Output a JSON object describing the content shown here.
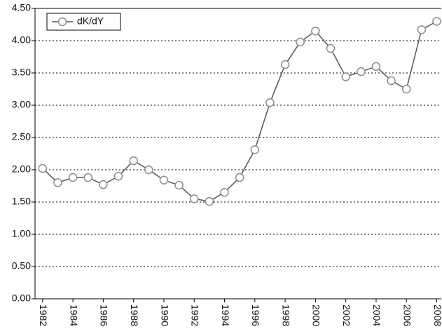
{
  "chart_data": {
    "type": "line",
    "x": [
      1982,
      1983,
      1984,
      1985,
      1986,
      1987,
      1988,
      1989,
      1990,
      1991,
      1992,
      1993,
      1994,
      1995,
      1996,
      1997,
      1998,
      1999,
      2000,
      2001,
      2002,
      2003,
      2004,
      2005,
      2006,
      2007,
      2008
    ],
    "series": [
      {
        "name": "dK/dY",
        "color": "#555555",
        "marker_color": "#8c8c8c",
        "values": [
          2.02,
          1.8,
          1.88,
          1.88,
          1.77,
          1.9,
          2.14,
          2.0,
          1.84,
          1.76,
          1.55,
          1.51,
          1.65,
          1.88,
          2.31,
          3.04,
          3.63,
          3.98,
          4.15,
          3.88,
          3.44,
          3.52,
          3.6,
          3.38,
          3.25,
          4.17,
          4.3
        ]
      }
    ],
    "xlim": [
      1981.5,
      2008.3
    ],
    "xticks": [
      1982,
      1984,
      1986,
      1988,
      1990,
      1992,
      1994,
      1996,
      1998,
      2000,
      2002,
      2004,
      2006,
      2008
    ],
    "ylim": [
      0,
      4.5
    ],
    "yticks": [
      {
        "value": 0,
        "label": "0.00"
      },
      {
        "value": 0.5,
        "label": "0.50"
      },
      {
        "value": 1,
        "label": "1.00"
      },
      {
        "value": 1.5,
        "label": "1.50"
      },
      {
        "value": 2,
        "label": "2.00"
      },
      {
        "value": 2.5,
        "label": "2.50"
      },
      {
        "value": 3,
        "label": "3.00"
      },
      {
        "value": 3.5,
        "label": "3.50"
      },
      {
        "value": 4,
        "label": "4.00"
      },
      {
        "value": 4.5,
        "label": "4.50"
      }
    ],
    "grid": true,
    "legend": "upper left"
  }
}
